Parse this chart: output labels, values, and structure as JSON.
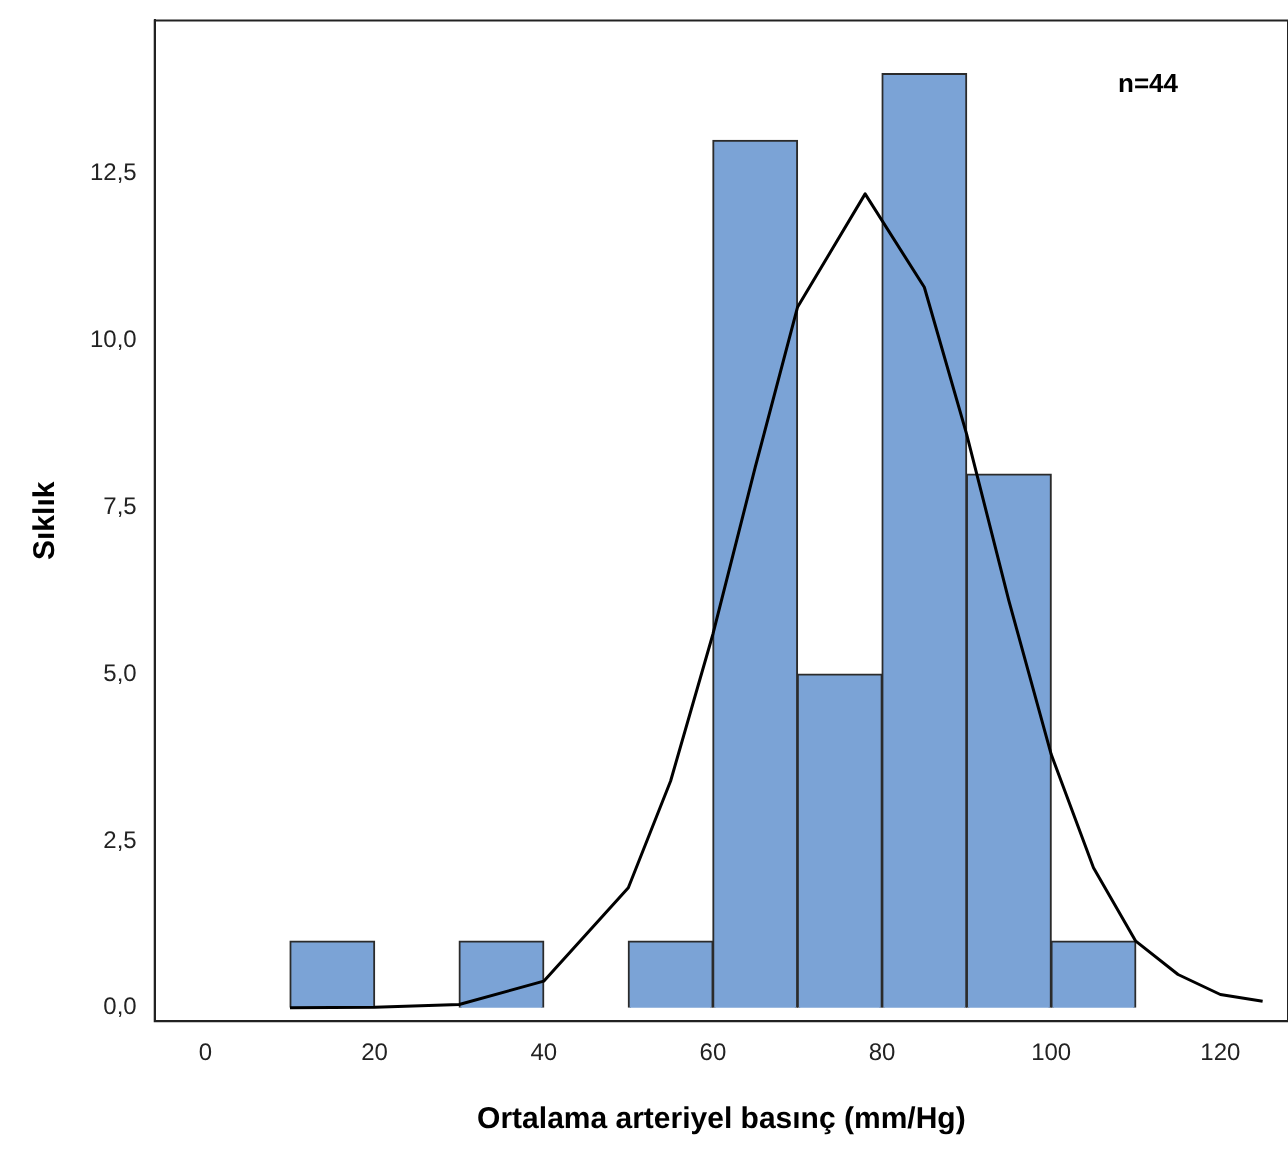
{
  "chart_data": {
    "type": "histogram",
    "xlabel": "Ortalama arteriyel basınç (mm/Hg)",
    "ylabel": "Sıklık",
    "bins": [
      10,
      20,
      30,
      40,
      50,
      60,
      70,
      80,
      90,
      100,
      110
    ],
    "values": [
      1,
      0,
      1,
      0,
      1,
      13,
      5,
      14,
      8,
      1
    ],
    "color": "#7ba3d6",
    "series": [
      {
        "type": "line",
        "color": "#000000",
        "x": [
          10,
          20,
          30,
          40,
          50,
          55,
          60,
          65,
          70,
          78,
          85,
          90,
          95,
          100,
          105,
          110,
          115,
          120,
          125
        ],
        "values": [
          0,
          0.01,
          0.05,
          0.4,
          1.8,
          3.4,
          5.6,
          8.1,
          10.5,
          12.2,
          10.8,
          8.6,
          6.1,
          3.8,
          2.1,
          1,
          0.5,
          0.2,
          0.1
        ]
      }
    ],
    "xlim": [
      -6,
      128
    ],
    "xticks": [
      0,
      20,
      40,
      60,
      80,
      100,
      120
    ],
    "ylim": [
      -0.2,
      14.8
    ],
    "yticks": [
      {
        "value": 0,
        "label": "0,0"
      },
      {
        "value": 2.5,
        "label": "2,5"
      },
      {
        "value": 5,
        "label": "5,0"
      },
      {
        "value": 7.5,
        "label": "7,5"
      },
      {
        "value": 10,
        "label": "10,0"
      },
      {
        "value": 12.5,
        "label": "12,5"
      }
    ],
    "annotations": [
      "n=44"
    ],
    "grid": false,
    "legend": false
  }
}
